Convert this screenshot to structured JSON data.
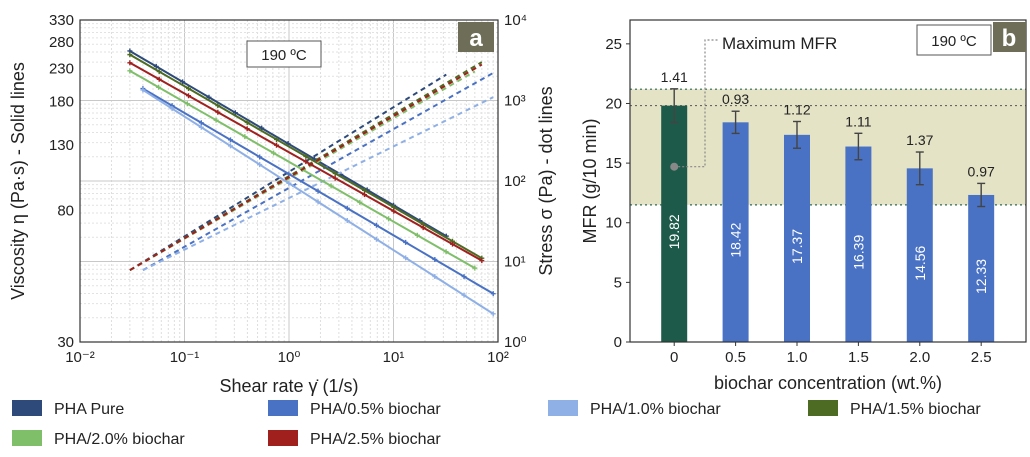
{
  "chart_data": [
    {
      "panel": "a",
      "type": "line",
      "xlabel": "Shear rate γ̇  (1/s)",
      "ylabel_left": "Viscosity η (Pa·s) - Solid lines",
      "ylabel_right": "Stress σ (Pa) - dot lines",
      "temperature_box": "190 ºC",
      "xscale": "log",
      "xlim": [
        0.01,
        100
      ],
      "ylim_left": [
        30,
        330
      ],
      "ylim_right": [
        1,
        10000
      ],
      "x_ticks": [
        0.01,
        0.1,
        1,
        10,
        100
      ],
      "x_tick_labels": [
        "10⁻²",
        "10⁻¹",
        "10⁰",
        "10¹",
        "10²"
      ],
      "y_left_ticks": [
        330,
        280,
        230,
        180,
        130,
        80,
        30
      ],
      "y_right_ticks": [
        10000,
        1000,
        100,
        10,
        1
      ],
      "y_right_tick_labels": [
        "10⁴",
        "10³",
        "10²",
        "10¹",
        "10⁰"
      ],
      "grid": true,
      "series": [
        {
          "name": "PHA Pure",
          "color": "#2e4a7a",
          "x_range": [
            0.03,
            32
          ],
          "viscosity": [
            262,
            66
          ],
          "stress_range": [
            7.8,
            2100
          ]
        },
        {
          "name": "PHA/0.5% biochar",
          "color": "#4a72c4",
          "x_range": [
            0.04,
            90
          ],
          "viscosity": [
            198,
            43
          ],
          "stress_range": [
            7.8,
            2200
          ]
        },
        {
          "name": "PHA/1.0% biochar",
          "color": "#8fb0e6",
          "x_range": [
            0.04,
            90
          ],
          "viscosity": [
            196,
            37
          ],
          "stress_range": [
            7.8,
            1100
          ]
        },
        {
          "name": "PHA/1.5% biochar",
          "color": "#4d6b22",
          "x_range": [
            0.03,
            70
          ],
          "viscosity": [
            255,
            56
          ],
          "stress_range": [
            7.8,
            3000
          ]
        },
        {
          "name": "PHA/2.0% biochar",
          "color": "#7fbf6a",
          "x_range": [
            0.03,
            60
          ],
          "viscosity": [
            226,
            52
          ],
          "stress_range": [
            7.8,
            2300
          ]
        },
        {
          "name": "PHA/2.5% biochar",
          "color": "#a0201e",
          "x_range": [
            0.03,
            70
          ],
          "viscosity": [
            240,
            55
          ],
          "stress_range": [
            7.8,
            2800
          ]
        }
      ]
    },
    {
      "panel": "b",
      "type": "bar",
      "xlabel": "biochar concentration (wt.%)",
      "ylabel": "MFR (g/10 min)",
      "temperature_box": "190 ºC",
      "annotation": "Maximum MFR",
      "ylim": [
        0,
        27
      ],
      "y_ticks": [
        0,
        5,
        10,
        15,
        20,
        25
      ],
      "categories": [
        "0",
        "0.5",
        "1.0",
        "1.5",
        "2.0",
        "2.5"
      ],
      "values": [
        19.82,
        18.42,
        17.37,
        16.39,
        14.56,
        12.33
      ],
      "value_labels": [
        "19.82",
        "18.42",
        "17.37",
        "16.39",
        "14.56",
        "12.33"
      ],
      "errors": [
        1.41,
        0.93,
        1.12,
        1.11,
        1.37,
        0.97
      ],
      "error_labels": [
        "1.41",
        "0.93",
        "1.12",
        "1.11",
        "1.37",
        "0.97"
      ],
      "bar_colors": [
        "#1e5a4a",
        "#4a72c4",
        "#4a72c4",
        "#4a72c4",
        "#4a72c4",
        "#4a72c4"
      ],
      "shaded_band": [
        11.5,
        21.2
      ],
      "max_marker_y": 14.7
    }
  ],
  "legend": [
    {
      "label": "PHA Pure",
      "color": "#2e4a7a"
    },
    {
      "label": "PHA/0.5% biochar",
      "color": "#4a72c4"
    },
    {
      "label": "PHA/1.0% biochar",
      "color": "#8fb0e6"
    },
    {
      "label": "PHA/1.5% biochar",
      "color": "#4d6b22"
    },
    {
      "label": "PHA/2.0% biochar",
      "color": "#7fbf6a"
    },
    {
      "label": "PHA/2.5% biochar",
      "color": "#a0201e"
    }
  ],
  "panel_badges": {
    "a": "a",
    "b": "b"
  },
  "colors": {
    "badge": "#6e6e58",
    "band": "#e4e3c6",
    "axis": "#333333"
  }
}
